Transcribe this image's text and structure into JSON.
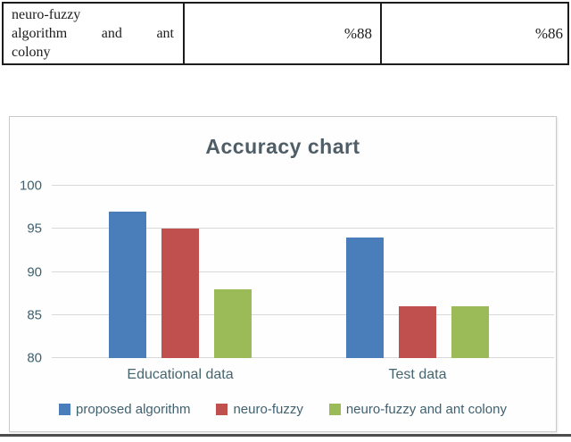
{
  "table": {
    "row": {
      "method_lines": [
        "neuro-fuzzy",
        "algorithm and ant",
        "colony"
      ],
      "educational_value": "%88",
      "test_value": "%86"
    }
  },
  "chart": {
    "title": "Accuracy chart"
  },
  "chart_data": {
    "type": "bar",
    "title": "Accuracy chart",
    "categories": [
      "Educational data",
      "Test data"
    ],
    "series": [
      {
        "name": "proposed algorithm",
        "color": "#4a7ebb",
        "values": [
          97,
          94
        ]
      },
      {
        "name": "neuro-fuzzy",
        "color": "#c0504d",
        "values": [
          95,
          86
        ]
      },
      {
        "name": "neuro-fuzzy and ant colony",
        "color": "#9bbb59",
        "values": [
          88,
          86
        ]
      }
    ],
    "ylim": [
      80,
      100
    ],
    "yticks": [
      80,
      85,
      90,
      95,
      100
    ],
    "grid": true,
    "legend_position": "bottom",
    "colors": {
      "title_text": "#4e5d66",
      "axis_text": "#40606e",
      "gridline": "#d9d9d9"
    }
  }
}
